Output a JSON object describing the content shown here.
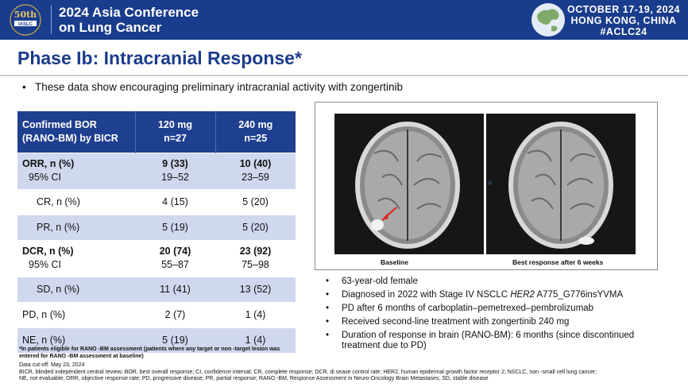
{
  "header": {
    "logo_line1": "50th",
    "logo_line2": "IASLC",
    "conference_line1": "2024 Asia Conference",
    "conference_line2": "on Lung Cancer",
    "date": "OCTOBER 17-19, 2024",
    "location": "HONG KONG, CHINA",
    "hashtag": "#ACLC24",
    "brand_color": "#1a3c8c"
  },
  "slide": {
    "title": "Phase Ib: Intracranial Response*",
    "intro_bullet": "These data show encouraging preliminary intracranial activity with zongertinib"
  },
  "table": {
    "header_col1_line1": "Confirmed BOR",
    "header_col1_line2": "(RANO-BM) by BICR",
    "header_col2_line1": "120 mg",
    "header_col2_line2": "n=27",
    "header_col3_line1": "240 mg",
    "header_col3_line2": "n=25",
    "rows": [
      {
        "label": "ORR, n (%)",
        "sub": "95% CI",
        "v120": "9 (33)",
        "v120_ci": "19–52",
        "v240": "10 (40)",
        "v240_ci": "23–59"
      },
      {
        "label": "CR, n (%)",
        "v120": "4 (15)",
        "v240": "5 (20)"
      },
      {
        "label": "PR, n (%)",
        "v120": "5 (19)",
        "v240": "5 (20)"
      },
      {
        "label": "DCR, n (%)",
        "sub": "95% CI",
        "v120": "20 (74)",
        "v120_ci": "55–87",
        "v240": "23 (92)",
        "v240_ci": "75–98"
      },
      {
        "label": "SD, n (%)",
        "v120": "11 (41)",
        "v240": "13 (52)"
      },
      {
        "label": "PD, n (%)",
        "v120": "2 (7)",
        "v240": "1 (4)"
      },
      {
        "label": "NE, n (%)",
        "v120": "5 (19)",
        "v240": "1 (4)"
      }
    ]
  },
  "footnote": "*In patients eligible for RANO -BM assessment (patients where any target or non -target lesion was entered for RANO -BM assessment at baseline)",
  "refs": {
    "line1": "Data cut-off: May 23, 2024",
    "line2": "BICR, blinded independent central review; BOR, best overall response; CI, confidence interval; CR, complete response; DCR, di     sease control rate; HER2, human epidermal growth factor receptor 2; NSCLC, non    -small cell lung cancer;",
    "line3": "NE, not evaluable; ORR, objective response rate; PD, progressive disease; PR, partial response; RANO     -BM, Response Assessment in  Neuro-Oncology Brain Metastases; SD, stable disease"
  },
  "images": {
    "panel_mark": "R",
    "baseline_caption": "Baseline",
    "best_caption": "Best response after 6 weeks"
  },
  "case": {
    "b1": "63-year-old female",
    "b2_pre": "Diagnosed in 2022 with Stage IV NSCLC ",
    "b2_italic": "HER2",
    "b2_post": " A775_G776insYVMA",
    "b3": "PD after 6 months of carboplatin–pemetrexed–pembrolizumab",
    "b4": "Received second-line treatment with zongertinib 240 mg",
    "b5": "Duration of response in brain (RANO-BM): 6 months (since discontinued treatment due to PD)"
  }
}
